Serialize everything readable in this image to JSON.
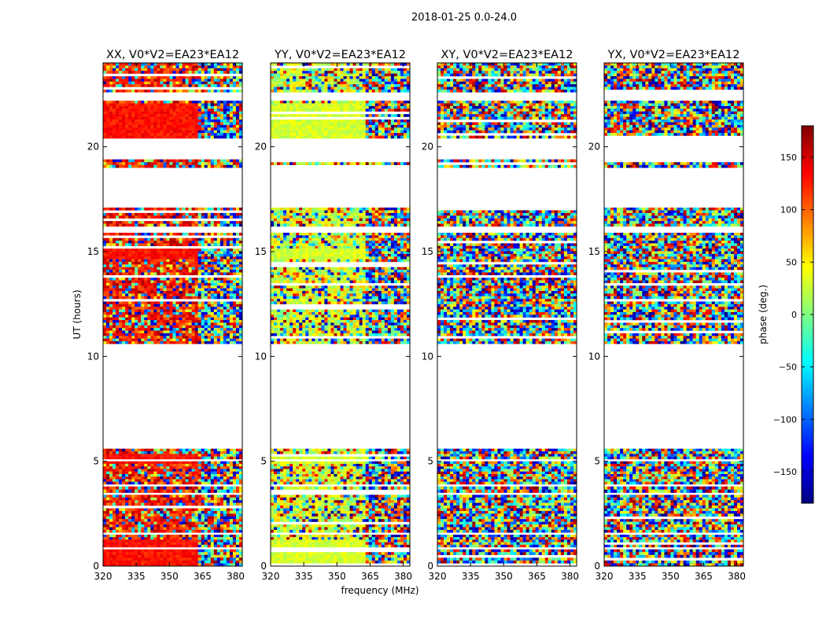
{
  "figure": {
    "suptitle": "2018-01-25 0.0-24.0",
    "xlabel": "frequency (MHz)",
    "ylabel": "UT (hours)"
  },
  "colorbar": {
    "label": "phase (deg.)",
    "range": [
      -180,
      180
    ],
    "ticks": [
      150,
      100,
      50,
      0,
      -50,
      -100,
      -150
    ],
    "tick_labels": [
      "150",
      "100",
      "50",
      "0",
      "−50",
      "−100",
      "−150"
    ],
    "colormap": "jet",
    "colormap_stops": [
      "#00007f",
      "#0000ff",
      "#007fff",
      "#00ffff",
      "#7fff7f",
      "#ffff00",
      "#ff7f00",
      "#ff0000",
      "#7f0000"
    ]
  },
  "chart_data": [
    {
      "type": "heatmap",
      "title": "XX, V0*V2=EA23*EA12",
      "xlim": [
        320,
        383
      ],
      "ylim": [
        0,
        24
      ],
      "xticks": [
        320,
        335,
        350,
        365,
        380
      ],
      "xtick_labels": [
        "320",
        "335",
        "350",
        "365",
        "380"
      ],
      "yticks": [
        0,
        5,
        10,
        15,
        20
      ],
      "ytick_labels": [
        "0",
        "5",
        "10",
        "15",
        "20"
      ],
      "character": "mostly red phases (~100-150 deg) at low frequencies with noisy fringes above ~360 MHz",
      "segments_hours": [
        [
          0,
          0.8
        ],
        [
          0.9,
          1.5
        ],
        [
          1.6,
          3.4
        ],
        [
          3.5,
          3.8
        ],
        [
          3.9,
          5.0
        ],
        [
          5.1,
          5.6
        ],
        [
          10.6,
          15.9
        ],
        [
          16.2,
          17.1
        ],
        [
          19.0,
          19.4
        ],
        [
          20.4,
          22.2
        ],
        [
          22.6,
          24
        ]
      ]
    },
    {
      "type": "heatmap",
      "title": "YY, V0*V2=EA23*EA12",
      "xlim": [
        320,
        383
      ],
      "ylim": [
        0,
        24
      ],
      "xticks": [
        320,
        335,
        350,
        365,
        380
      ],
      "xtick_labels": [
        "320",
        "335",
        "350",
        "365",
        "380"
      ],
      "yticks": [
        0,
        5,
        10,
        15,
        20
      ],
      "ytick_labels": [
        "0",
        "5",
        "10",
        "15",
        "20"
      ],
      "character": "yellow-green phases (~10-50 deg) in calibrator scans, noisy elsewhere",
      "segments_hours": [
        [
          0,
          0.8
        ],
        [
          0.9,
          1.5
        ],
        [
          1.6,
          3.4
        ],
        [
          3.5,
          3.8
        ],
        [
          3.9,
          5.0
        ],
        [
          5.1,
          5.6
        ],
        [
          10.6,
          15.9
        ],
        [
          16.2,
          17.1
        ],
        [
          19.0,
          19.4
        ],
        [
          20.4,
          22.2
        ],
        [
          22.6,
          24
        ]
      ]
    },
    {
      "type": "heatmap",
      "title": "XY, V0*V2=EA23*EA12",
      "xlim": [
        320,
        383
      ],
      "ylim": [
        0,
        24
      ],
      "xticks": [
        320,
        335,
        350,
        365,
        380
      ],
      "xtick_labels": [
        "320",
        "335",
        "350",
        "365",
        "380"
      ],
      "yticks": [
        0,
        5,
        10,
        15,
        20
      ],
      "ytick_labels": [
        "0",
        "5",
        "10",
        "15",
        "20"
      ],
      "character": "noise-like random phases across full range",
      "segments_hours": [
        [
          0,
          0.8
        ],
        [
          0.9,
          1.5
        ],
        [
          1.6,
          3.4
        ],
        [
          3.5,
          3.8
        ],
        [
          3.9,
          5.0
        ],
        [
          5.1,
          5.6
        ],
        [
          10.6,
          15.9
        ],
        [
          16.2,
          17.1
        ],
        [
          19.0,
          19.4
        ],
        [
          20.4,
          22.2
        ],
        [
          22.6,
          24
        ]
      ]
    },
    {
      "type": "heatmap",
      "title": "YX, V0*V2=EA23*EA12",
      "xlim": [
        320,
        383
      ],
      "ylim": [
        0,
        24
      ],
      "xticks": [
        320,
        335,
        350,
        365,
        380
      ],
      "xtick_labels": [
        "320",
        "335",
        "350",
        "365",
        "380"
      ],
      "yticks": [
        0,
        5,
        10,
        15,
        20
      ],
      "ytick_labels": [
        "0",
        "5",
        "10",
        "15",
        "20"
      ],
      "character": "noise-like random phases across full range",
      "segments_hours": [
        [
          0,
          0.8
        ],
        [
          0.9,
          1.5
        ],
        [
          1.6,
          3.4
        ],
        [
          3.5,
          3.8
        ],
        [
          3.9,
          5.0
        ],
        [
          5.1,
          5.6
        ],
        [
          10.6,
          15.9
        ],
        [
          16.2,
          17.1
        ],
        [
          19.0,
          19.4
        ],
        [
          20.4,
          22.2
        ],
        [
          22.6,
          24
        ]
      ]
    }
  ]
}
